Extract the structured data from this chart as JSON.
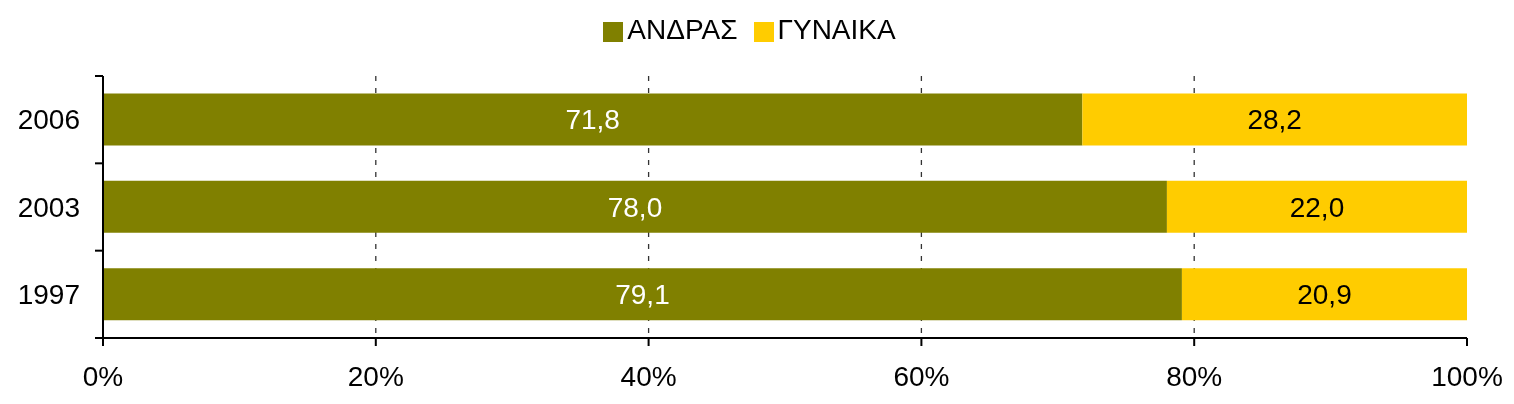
{
  "chart_data": {
    "type": "bar",
    "orientation": "horizontal",
    "stacked": true,
    "categories": [
      "2006",
      "2003",
      "1997"
    ],
    "series": [
      {
        "name": "ΑΝΔΡΑΣ",
        "color": "#808000",
        "values": [
          71.8,
          78.0,
          79.1
        ],
        "value_labels": [
          "71,8",
          "78,0",
          "79,1"
        ]
      },
      {
        "name": "ΓΥΝΑΙΚΑ",
        "color": "#ffcc00",
        "values": [
          28.2,
          22.0,
          20.9
        ],
        "value_labels": [
          "28,2",
          "22,0",
          "20,9"
        ]
      }
    ],
    "xlim": [
      0,
      100
    ],
    "xticks": [
      {
        "value": 0,
        "label": "0%"
      },
      {
        "value": 20,
        "label": "20%"
      },
      {
        "value": 40,
        "label": "40%"
      },
      {
        "value": 60,
        "label": "60%"
      },
      {
        "value": 80,
        "label": "80%"
      },
      {
        "value": 100,
        "label": "100%"
      }
    ],
    "grid": "x",
    "legend": "top"
  }
}
